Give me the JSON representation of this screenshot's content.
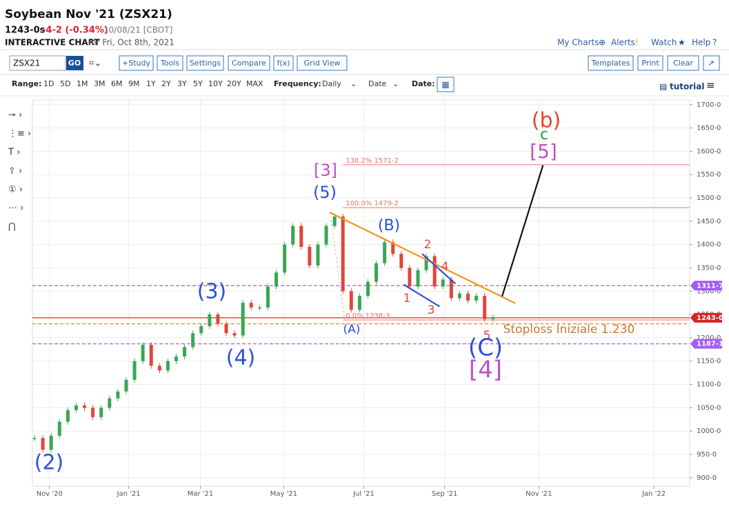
{
  "header": {
    "title": "Soybean Nov '21 (ZSX21)",
    "last": "1243-0s",
    "change": "-4-2 (-0.34%)",
    "date_exchange": "10/08/21 [CBOT]",
    "chart_label": "INTERACTIVE CHART",
    "chart_date": "for Fri, Oct 8th, 2021",
    "links": [
      "My Charts",
      "Alerts",
      "Watch",
      "Help"
    ]
  },
  "toolbar": {
    "symbol": "ZSX21",
    "go": "GO",
    "buttons": [
      "+Study",
      "Tools",
      "Settings",
      "Compare",
      "f(x)",
      "Grid View"
    ],
    "right_buttons": [
      "Templates",
      "Print",
      "Clear"
    ]
  },
  "range_bar": {
    "range_label": "Range:",
    "ranges": [
      "1D",
      "5D",
      "1M",
      "3M",
      "6M",
      "9M",
      "1Y",
      "2Y",
      "3Y",
      "5Y",
      "10Y",
      "20Y",
      "MAX"
    ],
    "frequency_label": "Frequency:",
    "frequency": "Daily",
    "date_mode": "Date",
    "date_label": "Date:",
    "tutorial": "tutorial"
  },
  "chart_data": {
    "type": "candlestick",
    "values": [
      985,
      960,
      990,
      1020,
      1045,
      1055,
      1050,
      1030,
      1050,
      1070,
      1085,
      1110,
      1150,
      1185,
      1140,
      1130,
      1150,
      1160,
      1180,
      1210,
      1225,
      1250,
      1230,
      1210,
      1205,
      1275,
      1265,
      1265,
      1310,
      1340,
      1400,
      1440,
      1395,
      1355,
      1400,
      1440,
      1460,
      1300,
      1260,
      1290,
      1320,
      1360,
      1405,
      1380,
      1350,
      1310,
      1345,
      1375,
      1310,
      1325,
      1285,
      1295,
      1280,
      1290,
      1240,
      1243
    ],
    "up_color": "#3aa655",
    "down_color": "#e0453a",
    "xlim": [
      -0.25,
      78.6
    ],
    "xticks": [
      {
        "value": 1.8,
        "label": "Nov '20"
      },
      {
        "value": 11.3,
        "label": "Jan '21"
      },
      {
        "value": 19.9,
        "label": "Mar '21"
      },
      {
        "value": 29.9,
        "label": "May '21"
      },
      {
        "value": 39.5,
        "label": "Jul '21"
      },
      {
        "value": 49.2,
        "label": "Sep '21"
      },
      {
        "value": 60.5,
        "label": "Nov '21"
      },
      {
        "value": 74.3,
        "label": "Jan '22"
      }
    ],
    "ylim": [
      882,
      1710
    ],
    "yticks": [
      {
        "value": 900,
        "label": "900-0"
      },
      {
        "value": 950,
        "label": "950-0"
      },
      {
        "value": 1000,
        "label": "1000-0"
      },
      {
        "value": 1050,
        "label": "1050-0"
      },
      {
        "value": 1100,
        "label": "1100-0"
      },
      {
        "value": 1150,
        "label": "1150-0"
      },
      {
        "value": 1200,
        "label": "1200-0"
      },
      {
        "value": 1250,
        "label": "1250-0"
      },
      {
        "value": 1300,
        "label": "1300-0"
      },
      {
        "value": 1350,
        "label": "1350-0"
      },
      {
        "value": 1400,
        "label": "1400-0"
      },
      {
        "value": 1450,
        "label": "1450-0"
      },
      {
        "value": 1500,
        "label": "1500-0"
      },
      {
        "value": 1550,
        "label": "1550-0"
      },
      {
        "value": 1600,
        "label": "1600-0"
      },
      {
        "value": 1650,
        "label": "1650-0"
      },
      {
        "value": 1700,
        "label": "1700-0"
      }
    ],
    "grid": true,
    "fib_color": "#e8746e",
    "fib_levels": [
      {
        "value": 1571.25,
        "label": "138.2% 1571-2"
      },
      {
        "value": 1479.25,
        "label": "100.0% 1479-2"
      },
      {
        "value": 1238.375,
        "label": "0.0% 1238-3"
      }
    ],
    "levels": [
      {
        "value": 1311.875,
        "label": "1311-7",
        "color": "#a35cf5",
        "style": "dashed"
      },
      {
        "value": 1243,
        "label": "1243-0",
        "color": "#d9232d",
        "style": "solid"
      },
      {
        "value": 1187.125,
        "label": "1187-1",
        "color": "#a35cf5",
        "style": "dashed"
      },
      {
        "value": 1230,
        "color": "#d98a3a",
        "style": "dashed"
      }
    ],
    "trendlines": [
      {
        "color": "#f7931e",
        "from": [
          35.4,
          1469
        ],
        "to": [
          57.7,
          1274
        ]
      },
      {
        "color": "#111111",
        "from": [
          56.1,
          1289
        ],
        "to": [
          61.0,
          1570
        ]
      },
      {
        "color": "#2b4fd8",
        "from": [
          46.5,
          1380
        ],
        "to": [
          50.5,
          1316
        ]
      },
      {
        "color": "#2b4fd8",
        "from": [
          44.3,
          1314
        ],
        "to": [
          48.6,
          1267
        ]
      },
      {
        "color": "#bbbbbb",
        "from": [
          35.6,
          1452
        ],
        "to": [
          37.2,
          1240
        ],
        "style": "dashed"
      }
    ],
    "annotations": [
      {
        "text": "[3]",
        "color": "#c04fc8"
      },
      {
        "text": "(5)",
        "color": "#2b4fd8"
      },
      {
        "text": "(3)",
        "color": "#2b4fd8"
      },
      {
        "text": "(4)",
        "color": "#2b4fd8"
      },
      {
        "text": "(2)",
        "color": "#2b4fd8"
      },
      {
        "text": "(A)",
        "color": "#2b4fd8"
      },
      {
        "text": "(B)",
        "color": "#2b4fd8"
      },
      {
        "text": "1",
        "color": "#e0453a"
      },
      {
        "text": "2",
        "color": "#e0453a"
      },
      {
        "text": "3",
        "color": "#e0453a"
      },
      {
        "text": "4",
        "color": "#e0453a"
      },
      {
        "text": "5",
        "color": "#e0453a"
      },
      {
        "text": "(C)",
        "color": "#2b4fd8"
      },
      {
        "text": "[4]",
        "color": "#c04fc8"
      },
      {
        "text": "(b)",
        "color": "#e8452e"
      },
      {
        "text": "c",
        "color": "#1f9e4a"
      },
      {
        "text": "[5]",
        "color": "#c04fc8"
      },
      {
        "text": "Stoploss Iniziale 1.230",
        "color": "#c97a2a"
      }
    ]
  }
}
